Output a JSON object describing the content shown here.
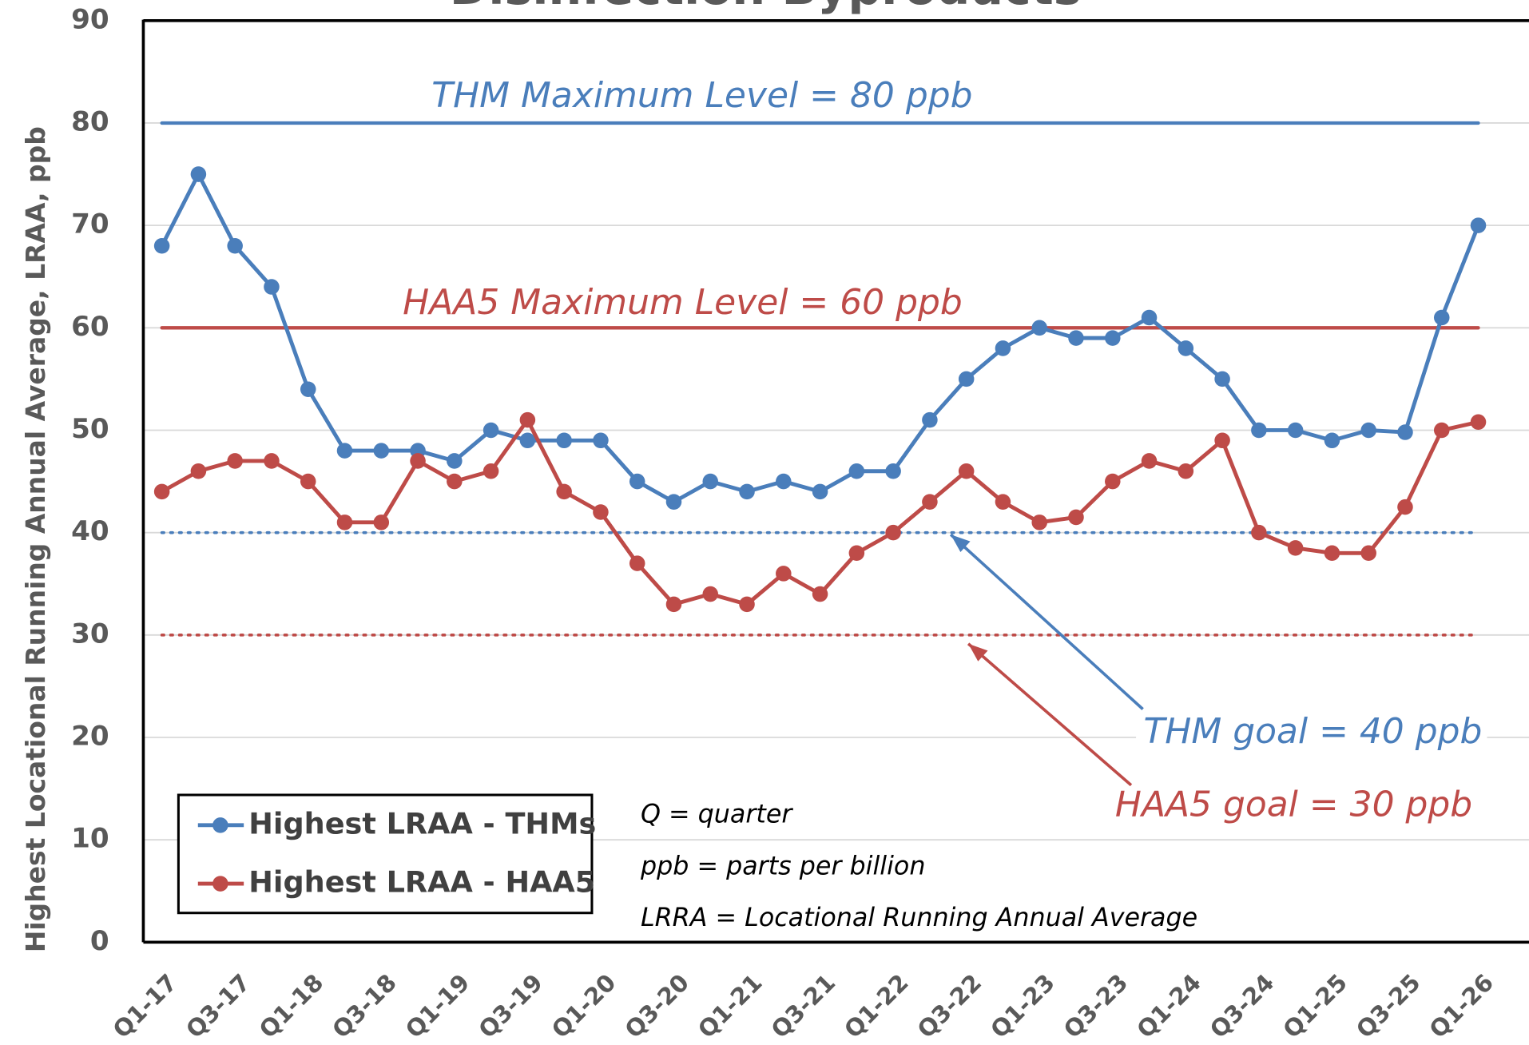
{
  "chart_data": {
    "type": "line",
    "title": "Disinfection Byproducts",
    "ylabel": "Highest Locational Running Annual Average, LRAA, ppb",
    "categories": [
      "Q1-17",
      null,
      "Q3-17",
      null,
      "Q1-18",
      null,
      "Q3-18",
      null,
      "Q1-19",
      null,
      "Q3-19",
      null,
      "Q1-20",
      null,
      "Q3-20",
      null,
      "Q1-21",
      null,
      "Q3-21",
      null,
      "Q1-22",
      null,
      "Q3-22",
      null,
      "Q1-23",
      null,
      "Q3-23",
      null,
      "Q1-24",
      null,
      "Q3-24",
      null,
      "Q1-25",
      null,
      "Q3-25",
      null,
      "Q1-26"
    ],
    "series": [
      {
        "name": "Highest LRAA - THMs",
        "color": "#4a7ebb",
        "values": [
          68,
          75,
          68,
          64,
          54,
          48,
          48,
          48,
          47,
          50,
          49,
          49,
          49,
          45,
          43,
          45,
          44,
          45,
          44,
          46,
          46,
          51,
          55,
          58,
          60,
          59,
          59,
          61,
          58,
          55,
          50,
          50,
          49,
          50,
          49.8,
          61,
          70
        ]
      },
      {
        "name": "Highest LRAA - HAA5",
        "color": "#be4b48",
        "values": [
          44,
          46,
          47,
          47,
          45,
          41,
          41,
          47,
          45,
          46,
          51,
          44,
          42,
          37,
          33,
          34,
          33,
          36,
          34,
          38,
          40,
          43,
          46,
          43,
          41,
          41.5,
          45,
          47,
          46,
          49,
          40,
          38.5,
          38,
          38,
          42.5,
          50,
          50.8
        ]
      }
    ],
    "ylim": [
      0,
      90
    ],
    "yticks": [
      0,
      10,
      20,
      30,
      40,
      50,
      60,
      70,
      80,
      90
    ],
    "grid": true,
    "reference_lines": [
      {
        "label": "THM Maximum Level = 80 ppb",
        "value": 80,
        "color": "#4a7ebb",
        "style": "solid"
      },
      {
        "label": "HAA5 Maximum Level = 60 ppb",
        "value": 60,
        "color": "#be4b48",
        "style": "solid"
      },
      {
        "label": "THM goal = 40 ppb",
        "value": 40,
        "color": "#4a7ebb",
        "style": "dotted"
      },
      {
        "label": "HAA5 goal = 30 ppb",
        "value": 30,
        "color": "#be4b48",
        "style": "dotted"
      }
    ],
    "notes": [
      "Q = quarter",
      "ppb = parts per billion",
      "LRRA = Locational Running Annual Average"
    ]
  }
}
